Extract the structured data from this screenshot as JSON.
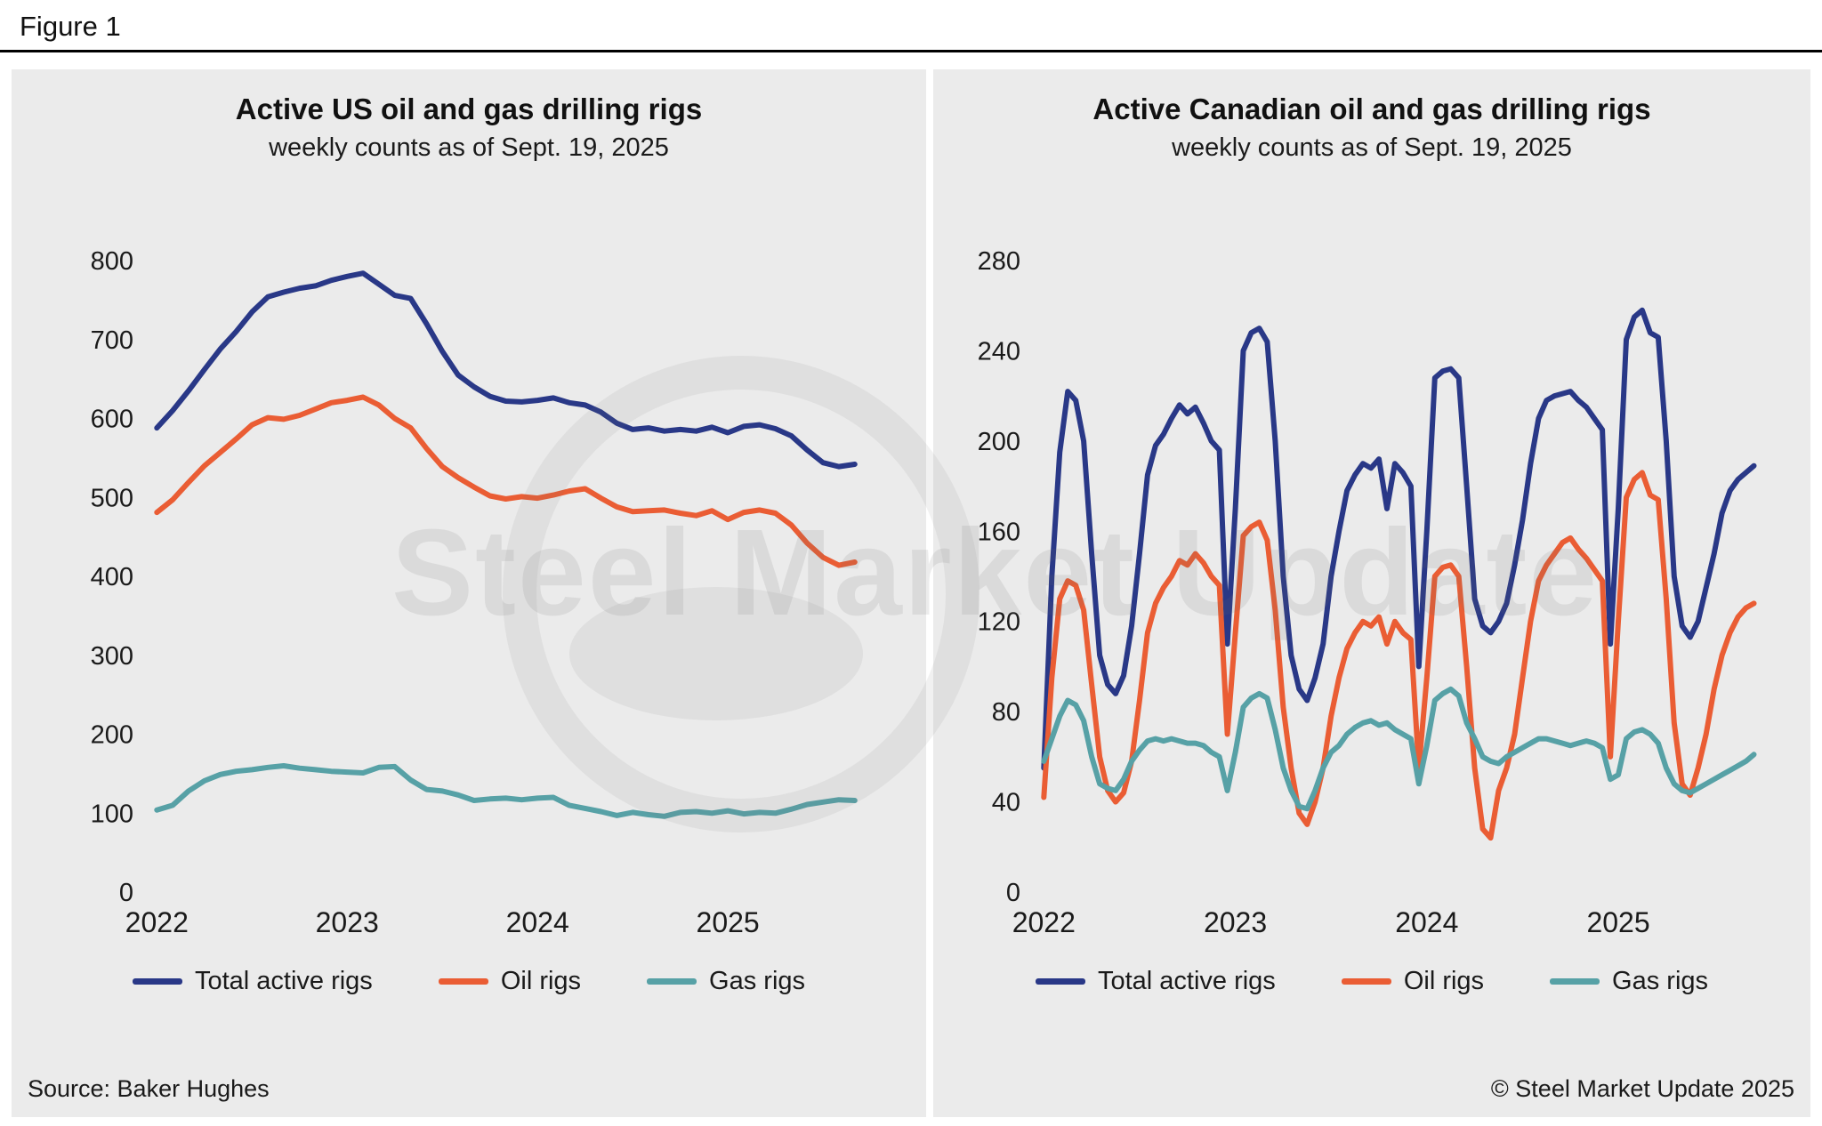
{
  "figure": {
    "label": "Figure 1"
  },
  "watermark": {
    "text": "Steel Market Update"
  },
  "footer": {
    "source": "Source: Baker Hughes",
    "copyright": "© Steel Market Update 2025"
  },
  "colors": {
    "total": "#293887",
    "oil": "#ea5d34",
    "gas": "#57a1a6",
    "panel_bg": "#ebebeb",
    "page_bg": "#ffffff",
    "text": "#1a1a1a"
  },
  "legend": {
    "items": [
      {
        "key": "total",
        "label": "Total active rigs"
      },
      {
        "key": "oil",
        "label": "Oil rigs"
      },
      {
        "key": "gas",
        "label": "Gas rigs"
      }
    ]
  },
  "chart_data": [
    {
      "type": "line",
      "title": "Active US oil and gas drilling rigs",
      "subtitle": "weekly counts as of Sept. 19, 2025",
      "x_start": 2022.0,
      "x_step_years": 0.0833333,
      "xlim": [
        2021.98,
        2025.85
      ],
      "ylim": [
        0,
        800
      ],
      "yticks": [
        0,
        100,
        200,
        300,
        400,
        500,
        600,
        700,
        800
      ],
      "xticks": [
        2022,
        2023,
        2024,
        2025
      ],
      "grid": false,
      "legend_position": "bottom",
      "series": [
        {
          "name": "Total active rigs",
          "color_key": "total",
          "values": [
            588,
            610,
            635,
            662,
            688,
            710,
            735,
            754,
            760,
            765,
            768,
            775,
            780,
            784,
            770,
            756,
            752,
            720,
            685,
            655,
            640,
            628,
            622,
            621,
            623,
            626,
            620,
            617,
            608,
            594,
            586,
            588,
            584,
            586,
            584,
            589,
            582,
            590,
            592,
            587,
            578,
            560,
            544,
            539,
            542
          ]
        },
        {
          "name": "Oil rigs",
          "color_key": "oil",
          "values": [
            481,
            497,
            519,
            540,
            557,
            574,
            592,
            601,
            599,
            604,
            612,
            620,
            623,
            627,
            617,
            600,
            588,
            562,
            539,
            525,
            513,
            502,
            498,
            501,
            499,
            503,
            508,
            511,
            499,
            488,
            482,
            483,
            484,
            480,
            477,
            483,
            472,
            481,
            484,
            480,
            465,
            442,
            424,
            414,
            418
          ]
        },
        {
          "name": "Gas rigs",
          "color_key": "gas",
          "values": [
            104,
            110,
            128,
            141,
            149,
            153,
            155,
            158,
            160,
            157,
            155,
            153,
            152,
            151,
            158,
            159,
            142,
            130,
            128,
            123,
            116,
            118,
            119,
            117,
            119,
            120,
            110,
            106,
            102,
            97,
            101,
            98,
            96,
            101,
            102,
            100,
            103,
            99,
            101,
            100,
            105,
            111,
            114,
            117,
            116
          ]
        }
      ]
    },
    {
      "type": "line",
      "title": "Active Canadian oil and gas drilling rigs",
      "subtitle": "weekly counts as of Sept. 19, 2025",
      "x_start": 2022.0,
      "x_step_years": 0.0416667,
      "xlim": [
        2021.98,
        2025.85
      ],
      "ylim": [
        0,
        280
      ],
      "yticks": [
        0,
        40,
        80,
        120,
        160,
        200,
        240,
        280
      ],
      "xticks": [
        2022,
        2023,
        2024,
        2025
      ],
      "grid": false,
      "legend_position": "bottom",
      "series": [
        {
          "name": "Total active rigs",
          "color_key": "total",
          "values": [
            55,
            140,
            195,
            222,
            218,
            200,
            150,
            105,
            92,
            88,
            96,
            118,
            150,
            185,
            198,
            203,
            210,
            216,
            212,
            215,
            208,
            200,
            196,
            110,
            170,
            240,
            248,
            250,
            244,
            200,
            140,
            105,
            90,
            85,
            95,
            110,
            140,
            160,
            178,
            185,
            190,
            188,
            192,
            170,
            190,
            186,
            180,
            100,
            160,
            228,
            231,
            232,
            228,
            180,
            130,
            118,
            115,
            120,
            128,
            145,
            165,
            190,
            210,
            218,
            220,
            221,
            222,
            218,
            215,
            210,
            205,
            110,
            170,
            245,
            255,
            258,
            248,
            246,
            200,
            140,
            118,
            113,
            120,
            135,
            150,
            168,
            178,
            183,
            186,
            189
          ]
        },
        {
          "name": "Oil rigs",
          "color_key": "oil",
          "values": [
            42,
            95,
            130,
            138,
            136,
            125,
            92,
            60,
            45,
            40,
            44,
            58,
            85,
            115,
            128,
            135,
            140,
            147,
            145,
            150,
            146,
            140,
            136,
            70,
            115,
            158,
            162,
            164,
            156,
            125,
            82,
            55,
            35,
            30,
            40,
            55,
            78,
            95,
            108,
            115,
            120,
            118,
            122,
            110,
            120,
            115,
            112,
            55,
            95,
            140,
            144,
            145,
            140,
            100,
            55,
            28,
            24,
            45,
            55,
            70,
            95,
            120,
            138,
            145,
            150,
            155,
            157,
            152,
            148,
            143,
            138,
            60,
            120,
            175,
            183,
            186,
            176,
            174,
            130,
            75,
            48,
            43,
            55,
            70,
            90,
            105,
            115,
            122,
            126,
            128
          ]
        },
        {
          "name": "Gas rigs",
          "color_key": "gas",
          "values": [
            58,
            68,
            78,
            85,
            83,
            76,
            60,
            48,
            46,
            45,
            50,
            58,
            63,
            67,
            68,
            67,
            68,
            67,
            66,
            66,
            65,
            62,
            60,
            45,
            62,
            82,
            86,
            88,
            86,
            72,
            55,
            45,
            38,
            37,
            45,
            55,
            62,
            65,
            70,
            73,
            75,
            76,
            74,
            75,
            72,
            70,
            68,
            48,
            65,
            85,
            88,
            90,
            87,
            75,
            68,
            60,
            58,
            57,
            60,
            62,
            64,
            66,
            68,
            68,
            67,
            66,
            65,
            66,
            67,
            66,
            64,
            50,
            52,
            68,
            71,
            72,
            70,
            66,
            55,
            48,
            45,
            44,
            46,
            48,
            50,
            52,
            54,
            56,
            58,
            61
          ]
        }
      ]
    }
  ]
}
